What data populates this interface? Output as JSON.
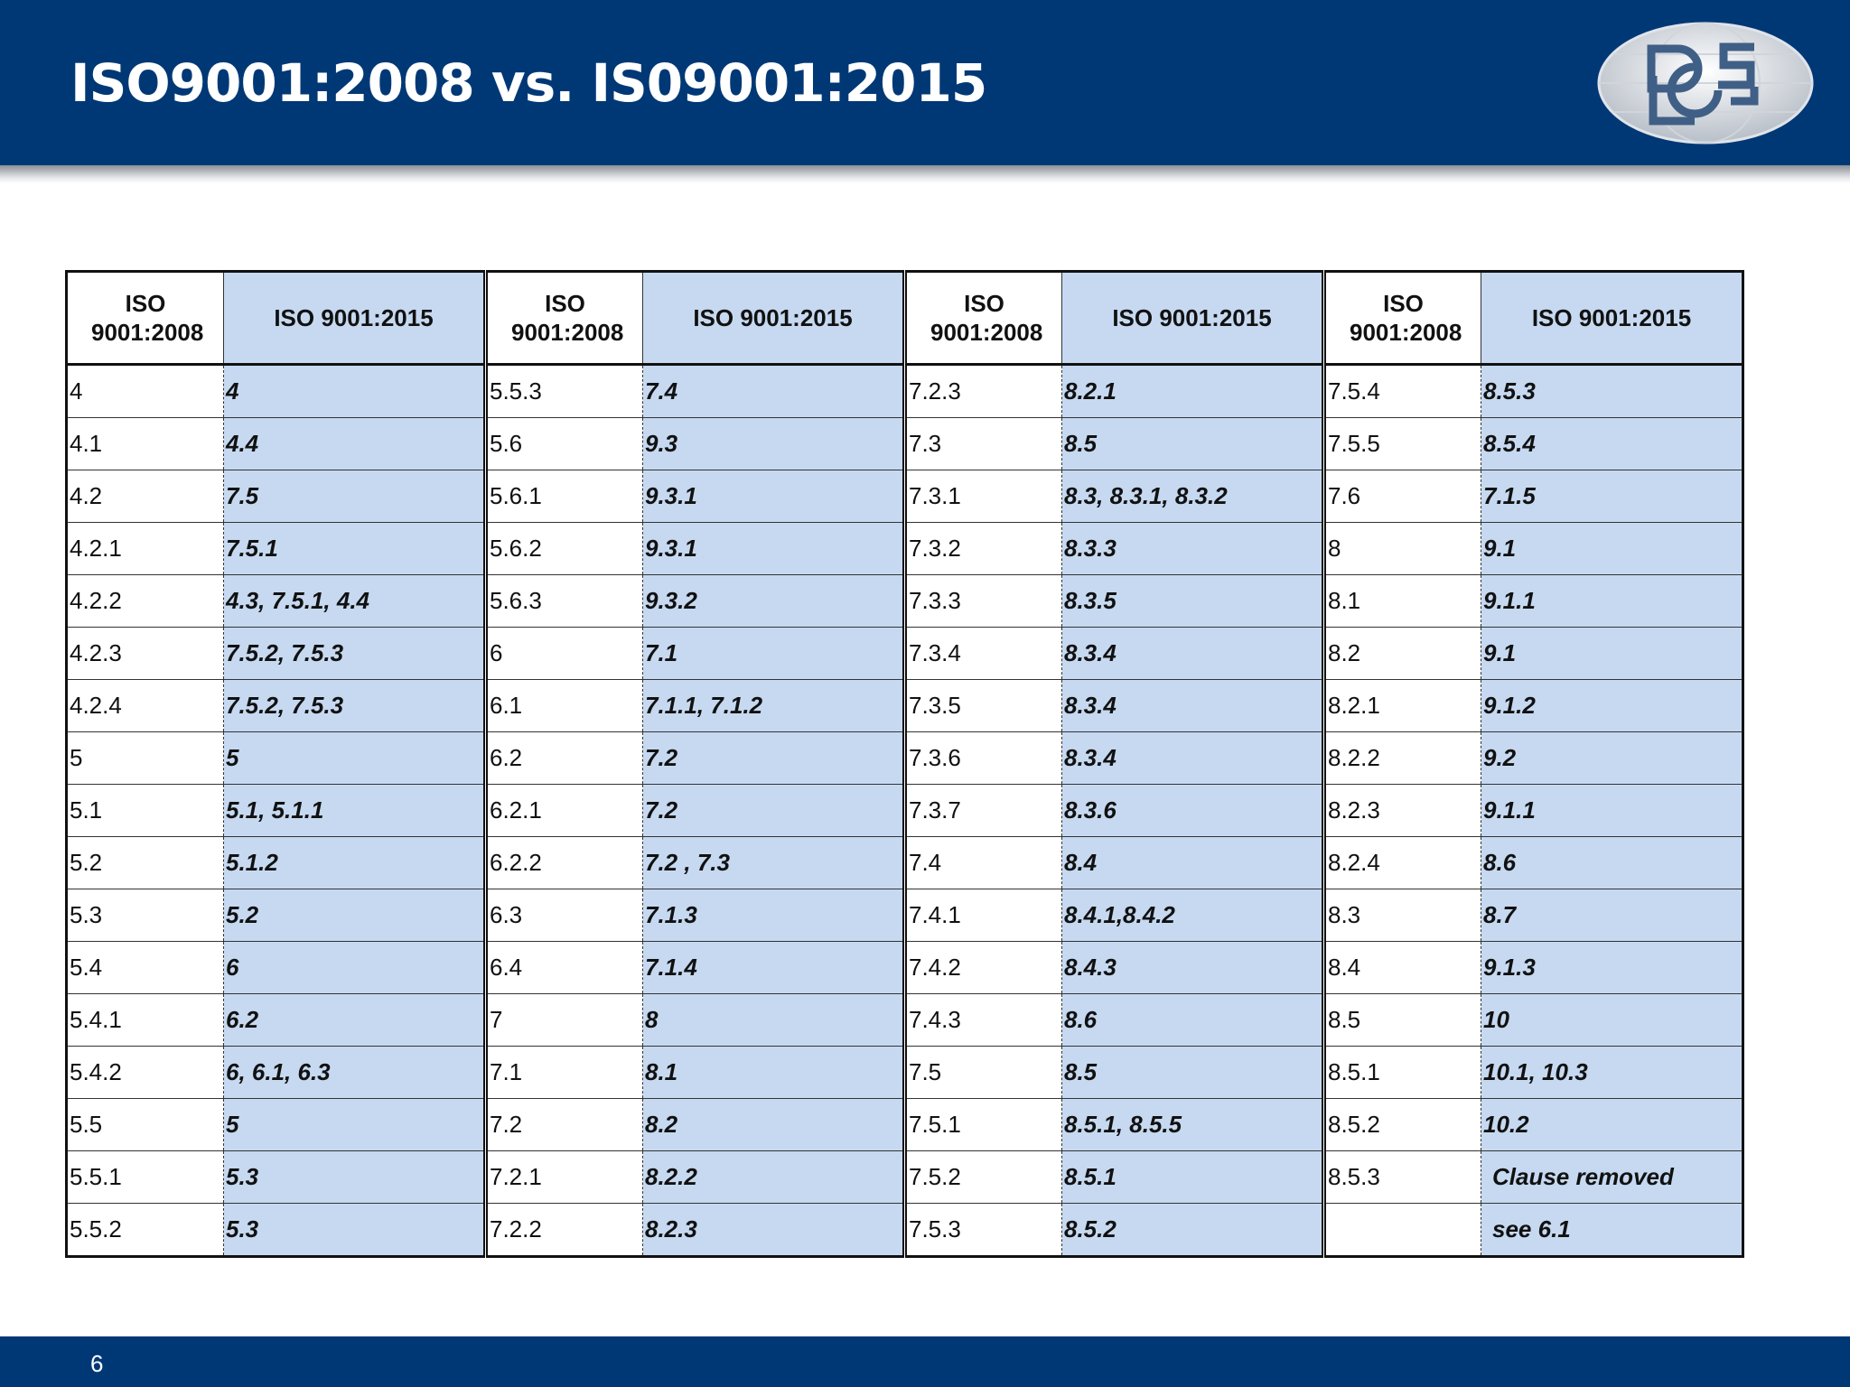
{
  "header": {
    "title": "ISO9001:2008 vs. IS09001:2015"
  },
  "table": {
    "groups": [
      {
        "headers": [
          "ISO 9001:2008",
          "ISO 9001:2015"
        ],
        "rows": [
          [
            "4",
            "4"
          ],
          [
            "4.1",
            "4.4"
          ],
          [
            "4.2",
            "7.5"
          ],
          [
            "4.2.1",
            "7.5.1"
          ],
          [
            "4.2.2",
            "4.3, 7.5.1, 4.4"
          ],
          [
            "4.2.3",
            "7.5.2, 7.5.3"
          ],
          [
            "4.2.4",
            "7.5.2, 7.5.3"
          ],
          [
            "5",
            "5"
          ],
          [
            "5.1",
            "5.1, 5.1.1"
          ],
          [
            "5.2",
            "5.1.2"
          ],
          [
            "5.3",
            "5.2"
          ],
          [
            "5.4",
            "6"
          ],
          [
            "5.4.1",
            "6.2"
          ],
          [
            "5.4.2",
            "6, 6.1, 6.3"
          ],
          [
            "5.5",
            "5"
          ],
          [
            "5.5.1",
            "5.3"
          ],
          [
            "5.5.2",
            "5.3"
          ]
        ]
      },
      {
        "headers": [
          "ISO 9001:2008",
          "ISO 9001:2015"
        ],
        "rows": [
          [
            "5.5.3",
            "7.4"
          ],
          [
            "5.6",
            "9.3"
          ],
          [
            "5.6.1",
            "9.3.1"
          ],
          [
            "5.6.2",
            "9.3.1"
          ],
          [
            "5.6.3",
            "9.3.2"
          ],
          [
            "6",
            "7.1"
          ],
          [
            "6.1",
            "7.1.1, 7.1.2"
          ],
          [
            "6.2",
            "7.2"
          ],
          [
            "6.2.1",
            "7.2"
          ],
          [
            "6.2.2",
            "7.2 , 7.3"
          ],
          [
            "6.3",
            "7.1.3"
          ],
          [
            "6.4",
            "7.1.4"
          ],
          [
            "7",
            "8"
          ],
          [
            "7.1",
            "8.1"
          ],
          [
            "7.2",
            "8.2"
          ],
          [
            "7.2.1",
            "8.2.2"
          ],
          [
            "7.2.2",
            "8.2.3"
          ]
        ]
      },
      {
        "headers": [
          "ISO 9001:2008",
          "ISO 9001:2015"
        ],
        "rows": [
          [
            "7.2.3",
            "8.2.1"
          ],
          [
            "7.3",
            "8.5"
          ],
          [
            "7.3.1",
            "8.3, 8.3.1, 8.3.2"
          ],
          [
            "7.3.2",
            "8.3.3"
          ],
          [
            "7.3.3",
            "8.3.5"
          ],
          [
            "7.3.4",
            "8.3.4"
          ],
          [
            "7.3.5",
            "8.3.4"
          ],
          [
            "7.3.6",
            "8.3.4"
          ],
          [
            "7.3.7",
            "8.3.6"
          ],
          [
            "7.4",
            "8.4"
          ],
          [
            "7.4.1",
            "8.4.1,8.4.2"
          ],
          [
            "7.4.2",
            "8.4.3"
          ],
          [
            "7.4.3",
            "8.6"
          ],
          [
            "7.5",
            "8.5"
          ],
          [
            "7.5.1",
            "8.5.1, 8.5.5"
          ],
          [
            "7.5.2",
            "8.5.1"
          ],
          [
            "7.5.3",
            "8.5.2"
          ]
        ]
      },
      {
        "headers": [
          "ISO 9001:2008",
          "ISO 9001:2015"
        ],
        "rows": [
          [
            "7.5.4",
            "8.5.3"
          ],
          [
            "7.5.5",
            "8.5.4"
          ],
          [
            "7.6",
            "7.1.5"
          ],
          [
            "8",
            "9.1"
          ],
          [
            "8.1",
            "9.1.1"
          ],
          [
            "8.2",
            "9.1"
          ],
          [
            "8.2.1",
            "9.1.2"
          ],
          [
            "8.2.2",
            "9.2"
          ],
          [
            "8.2.3",
            "9.1.1"
          ],
          [
            "8.2.4",
            "8.6"
          ],
          [
            "8.3",
            "8.7"
          ],
          [
            "8.4",
            "9.1.3"
          ],
          [
            "8.5",
            "10"
          ],
          [
            "8.5.1",
            "10.1, 10.3"
          ],
          [
            "8.5.2",
            "10.2"
          ],
          [
            "8.5.3",
            "Clause removed"
          ],
          [
            null,
            "see 6.1"
          ]
        ]
      }
    ]
  },
  "footer": {
    "page_number": "6"
  }
}
